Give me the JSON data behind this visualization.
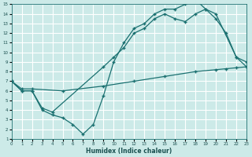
{
  "xlabel": "Humidex (Indice chaleur)",
  "xlim": [
    0,
    23
  ],
  "ylim": [
    1,
    15
  ],
  "xticks": [
    0,
    1,
    2,
    3,
    4,
    5,
    6,
    7,
    8,
    9,
    10,
    11,
    12,
    13,
    14,
    15,
    16,
    17,
    18,
    19,
    20,
    21,
    22,
    23
  ],
  "yticks": [
    1,
    2,
    3,
    4,
    5,
    6,
    7,
    8,
    9,
    10,
    11,
    12,
    13,
    14,
    15
  ],
  "bg_color": "#cceae8",
  "grid_color": "#ffffff",
  "line_color": "#1a7070",
  "curve1_x": [
    0,
    1,
    2,
    3,
    4,
    5,
    6,
    7,
    8,
    9,
    10,
    11,
    12,
    13,
    14,
    15,
    16,
    17,
    18,
    19,
    20,
    21,
    22,
    23
  ],
  "curve1_y": [
    7.0,
    6.0,
    6.0,
    4.0,
    3.5,
    3.2,
    2.5,
    1.5,
    2.5,
    5.5,
    9.0,
    11.0,
    12.5,
    13.0,
    14.0,
    14.5,
    14.5,
    15.0,
    15.5,
    14.5,
    13.5,
    12.0,
    9.5,
    8.5
  ],
  "curve2_x": [
    0,
    1,
    2,
    3,
    4,
    9,
    10,
    11,
    12,
    13,
    14,
    15,
    16,
    17,
    18,
    19,
    20,
    22,
    23
  ],
  "curve2_y": [
    7.0,
    6.0,
    6.0,
    4.2,
    3.8,
    8.5,
    9.5,
    10.5,
    12.0,
    12.5,
    13.5,
    14.0,
    13.5,
    13.2,
    14.0,
    14.5,
    14.0,
    9.5,
    9.0
  ],
  "curve3_x": [
    0,
    1,
    2,
    5,
    9,
    12,
    15,
    18,
    20,
    21,
    22,
    23
  ],
  "curve3_y": [
    7.0,
    6.2,
    6.2,
    6.0,
    6.5,
    7.0,
    7.5,
    8.0,
    8.2,
    8.3,
    8.4,
    8.5
  ]
}
